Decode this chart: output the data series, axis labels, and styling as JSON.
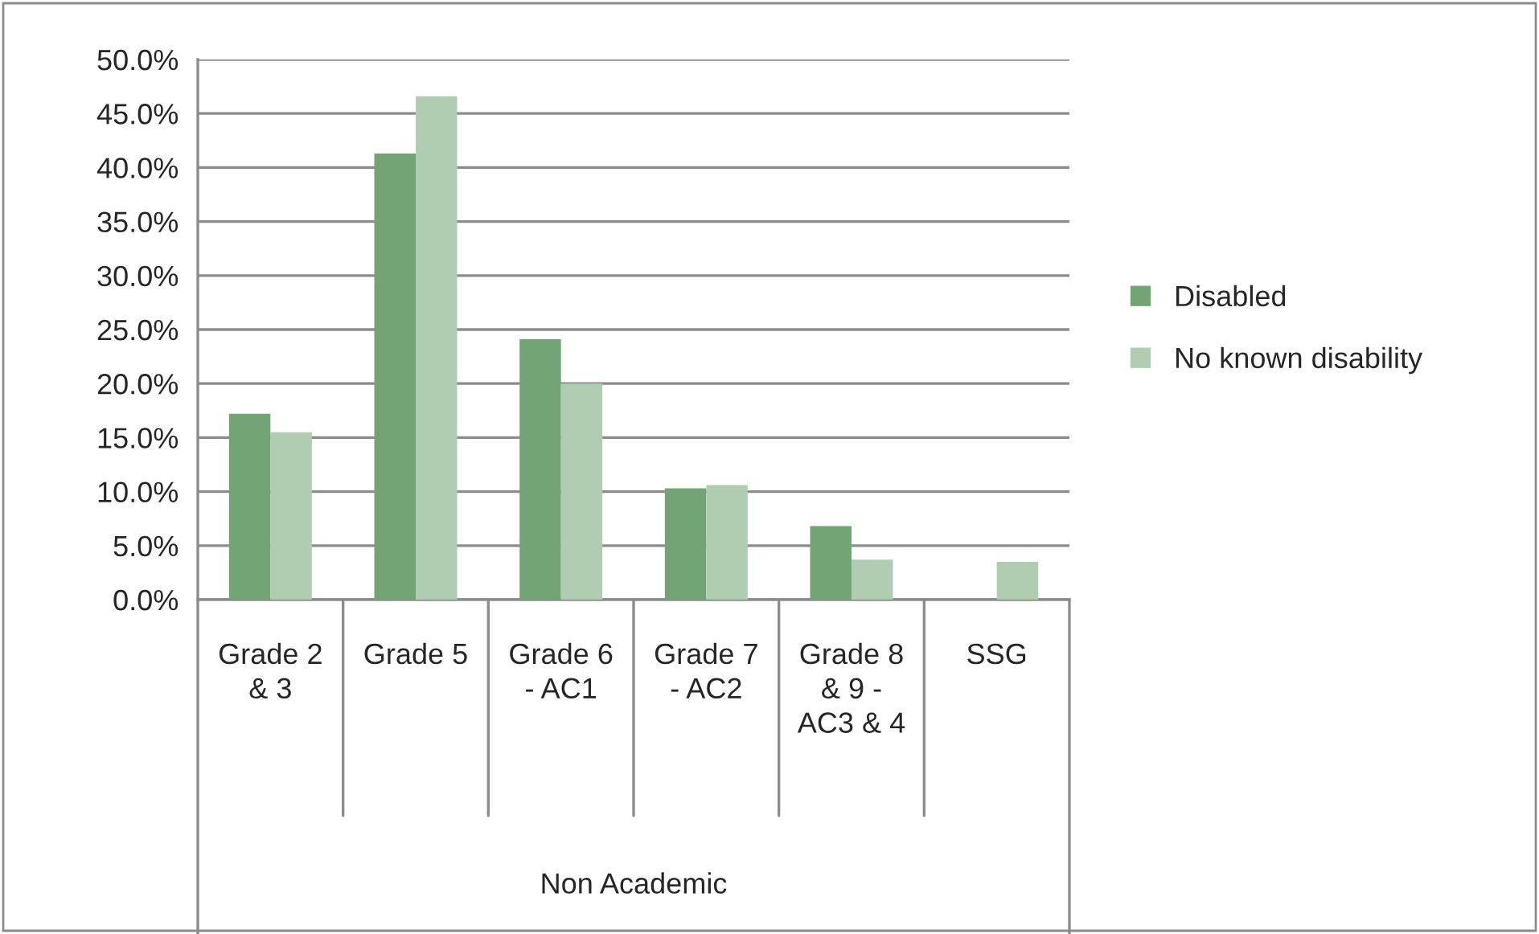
{
  "chart_data": {
    "type": "bar",
    "categories": [
      "Grade 2\n& 3",
      "Grade 5",
      "Grade 6\n- AC1",
      "Grade 7\n- AC2",
      "Grade 8\n& 9 -\nAC3 & 4",
      "SSG"
    ],
    "series": [
      {
        "name": "Disabled",
        "color": "#73a476",
        "values": [
          17.2,
          41.3,
          24.1,
          10.3,
          6.8,
          null
        ]
      },
      {
        "name": "No known disability",
        "color": "#b0cdb1",
        "values": [
          15.5,
          46.6,
          20.0,
          10.6,
          3.7,
          3.5
        ]
      }
    ],
    "xlabel": "Non Academic",
    "ylim": [
      0,
      50
    ],
    "yticks": [
      {
        "value": 0,
        "label": "0.0%"
      },
      {
        "value": 5,
        "label": "5.0%"
      },
      {
        "value": 10,
        "label": "10.0%"
      },
      {
        "value": 15,
        "label": "15.0%"
      },
      {
        "value": 20,
        "label": "20.0%"
      },
      {
        "value": 25,
        "label": "25.0%"
      },
      {
        "value": 30,
        "label": "30.0%"
      },
      {
        "value": 35,
        "label": "35.0%"
      },
      {
        "value": 40,
        "label": "40.0%"
      },
      {
        "value": 45,
        "label": "45.0%"
      },
      {
        "value": 50,
        "label": "50.0%"
      }
    ],
    "grid": "y",
    "legend": "right"
  }
}
